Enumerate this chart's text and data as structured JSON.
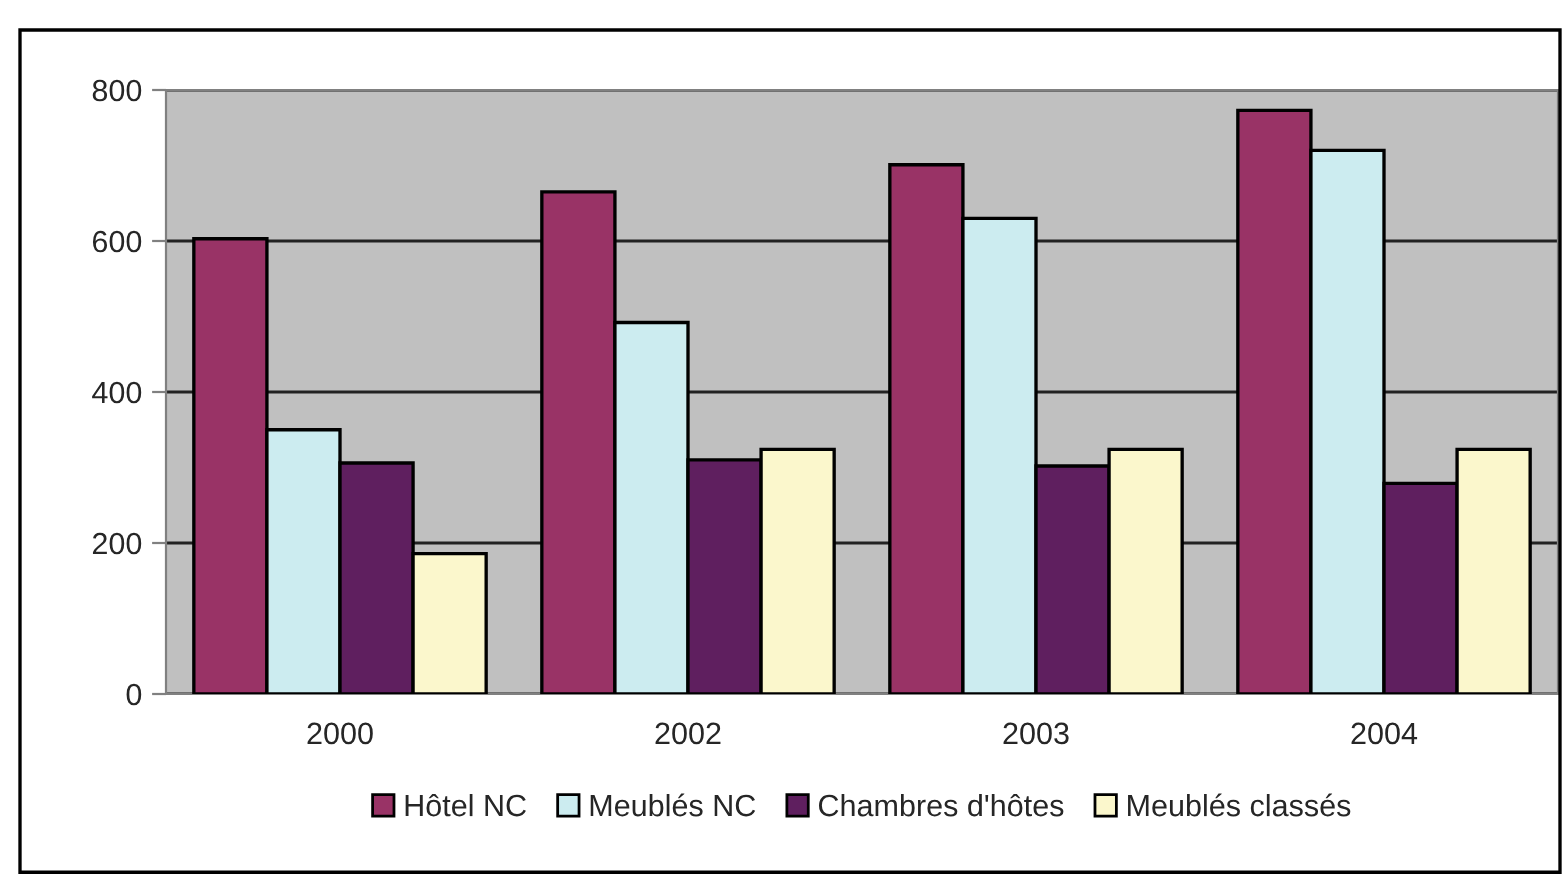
{
  "chart_data": {
    "type": "bar",
    "categories": [
      "2000",
      "2002",
      "2003",
      "2004"
    ],
    "series": [
      {
        "name": "Hôtel NC",
        "color": "#993366",
        "values": [
          603,
          665,
          701,
          773
        ]
      },
      {
        "name": "Meublés NC",
        "color": "#ccecf0",
        "values": [
          350,
          492,
          630,
          720
        ]
      },
      {
        "name": "Chambres d'hôtes",
        "color": "#5f1f5f",
        "values": [
          306,
          310,
          302,
          279
        ]
      },
      {
        "name": "Meublés classés",
        "color": "#fbf7cc",
        "values": [
          186,
          324,
          324,
          324
        ]
      }
    ],
    "ylim": [
      0,
      800
    ],
    "yticks": [
      0,
      200,
      400,
      600,
      800
    ],
    "grid": "y",
    "legend": "bottom"
  }
}
